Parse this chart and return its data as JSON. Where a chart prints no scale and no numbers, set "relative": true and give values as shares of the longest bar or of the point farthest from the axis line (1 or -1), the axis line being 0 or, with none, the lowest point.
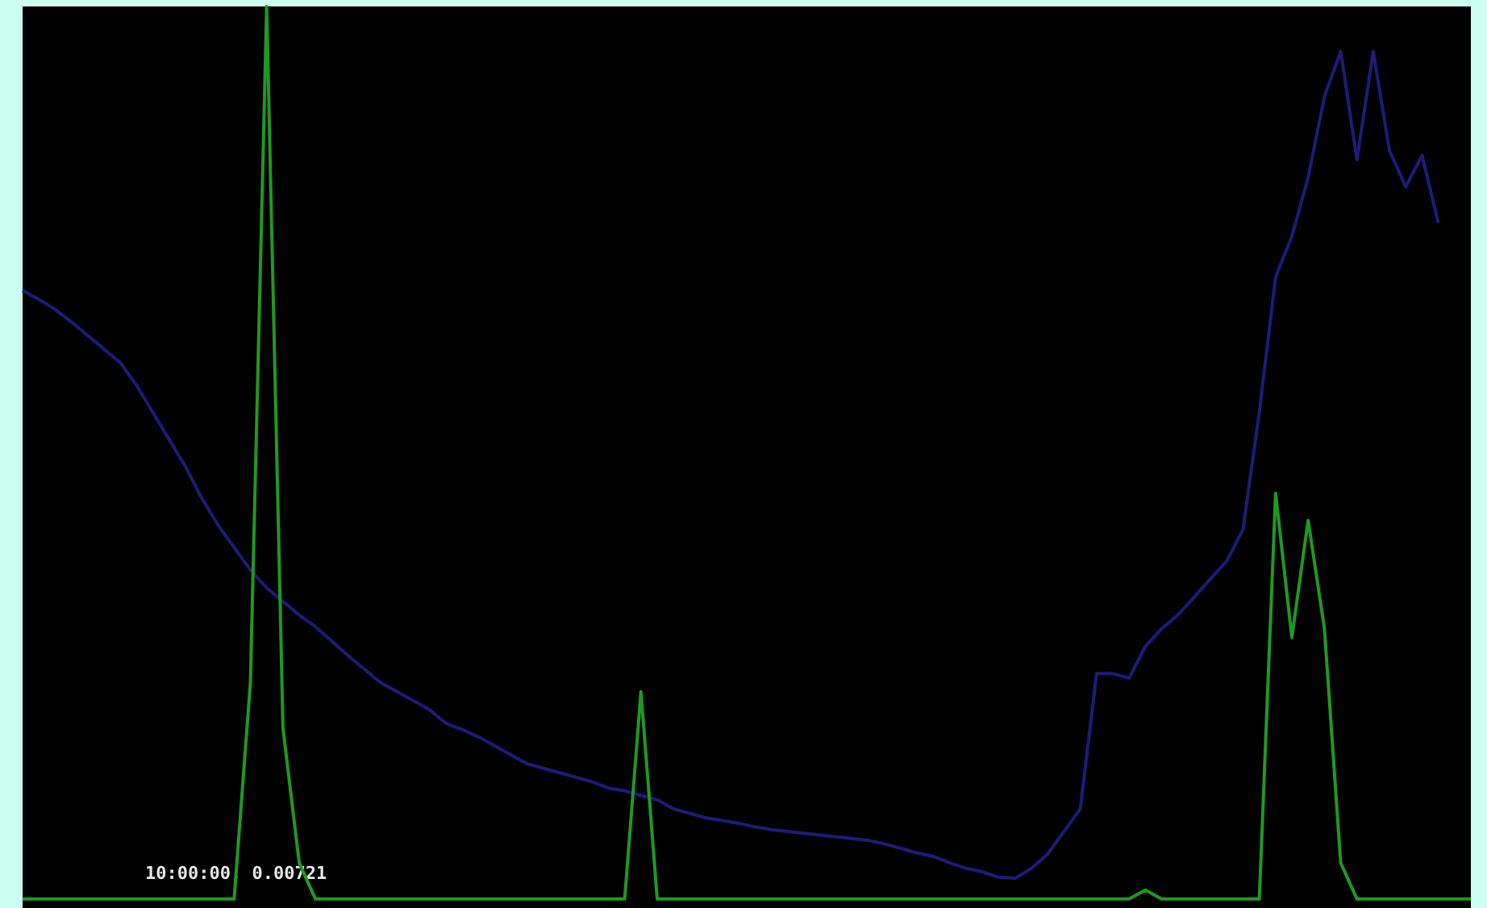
{
  "chart_data": {
    "type": "line",
    "relative": true,
    "marker": "none",
    "categories": [
      null,
      null,
      null,
      null,
      null,
      null,
      null,
      null,
      null,
      null,
      null,
      null,
      null,
      null,
      null,
      null,
      null,
      null,
      null,
      null,
      null,
      null,
      null,
      null,
      null,
      null,
      null,
      null,
      null,
      null,
      null,
      null,
      null,
      null,
      null,
      null,
      null,
      null,
      null,
      null,
      null,
      null,
      null,
      null,
      null,
      null,
      null,
      null,
      null,
      null,
      null,
      null,
      null,
      null,
      null,
      null,
      null,
      null,
      null,
      null,
      null,
      null,
      null,
      null,
      null,
      null,
      null,
      null,
      null,
      null,
      null,
      null,
      null,
      null,
      null,
      null,
      null,
      null,
      null,
      null,
      null,
      null,
      null,
      null,
      null,
      null,
      null,
      null,
      null,
      null
    ],
    "series": [
      {
        "color": "#1c1c7a",
        "values": [
          0.685,
          0.675,
          0.664,
          0.65,
          0.635,
          0.62,
          0.605,
          0.58,
          0.55,
          0.52,
          0.49,
          0.455,
          0.425,
          0.4,
          0.375,
          0.355,
          0.34,
          0.325,
          0.312,
          0.296,
          0.28,
          0.265,
          0.25,
          0.24,
          0.23,
          0.22,
          0.205,
          0.198,
          0.19,
          0.18,
          0.17,
          0.16,
          0.155,
          0.15,
          0.145,
          0.14,
          0.133,
          0.13,
          0.125,
          0.12,
          0.11,
          0.105,
          0.1,
          0.097,
          0.094,
          0.09,
          0.087,
          0.085,
          0.083,
          0.081,
          0.079,
          0.077,
          0.075,
          0.071,
          0.066,
          0.061,
          0.057,
          0.05,
          0.044,
          0.04,
          0.034,
          0.033,
          0.044,
          0.06,
          0.085,
          0.11,
          0.26,
          0.26,
          0.255,
          0.29,
          0.31,
          0.325,
          0.345,
          0.365,
          0.385,
          0.42,
          0.55,
          0.7,
          0.745,
          0.81,
          0.9,
          0.95,
          0.83,
          0.95,
          0.84,
          0.8,
          0.835,
          0.76,
          null,
          null
        ]
      },
      {
        "color": "#1f9a1f",
        "values": [
          0.01,
          0.01,
          0.01,
          0.01,
          0.01,
          0.01,
          0.01,
          0.01,
          0.01,
          0.01,
          0.01,
          0.01,
          0.01,
          0.01,
          0.25,
          1,
          0.2,
          0.05,
          0.01,
          0.01,
          0.01,
          0.01,
          0.01,
          0.01,
          0.01,
          0.01,
          0.01,
          0.01,
          0.01,
          0.01,
          0.01,
          0.01,
          0.01,
          0.01,
          0.01,
          0.01,
          0.01,
          0.01,
          0.24,
          0.01,
          0.01,
          0.01,
          0.01,
          0.01,
          0.01,
          0.01,
          0.01,
          0.01,
          0.01,
          0.01,
          0.01,
          0.01,
          0.01,
          0.01,
          0.01,
          0.01,
          0.01,
          0.01,
          0.01,
          0.01,
          0.01,
          0.01,
          0.01,
          0.01,
          0.01,
          0.01,
          0.01,
          0.01,
          0.01,
          0.02,
          0.01,
          0.01,
          0.01,
          0.01,
          0.01,
          0.01,
          0.01,
          0.46,
          0.3,
          0.43,
          0.31,
          0.05,
          0.01,
          0.01,
          0.01,
          0.01,
          0.01,
          0.01,
          0.01,
          0.01
        ]
      }
    ],
    "annotations": [
      "10:00:00, 0.00721"
    ]
  }
}
